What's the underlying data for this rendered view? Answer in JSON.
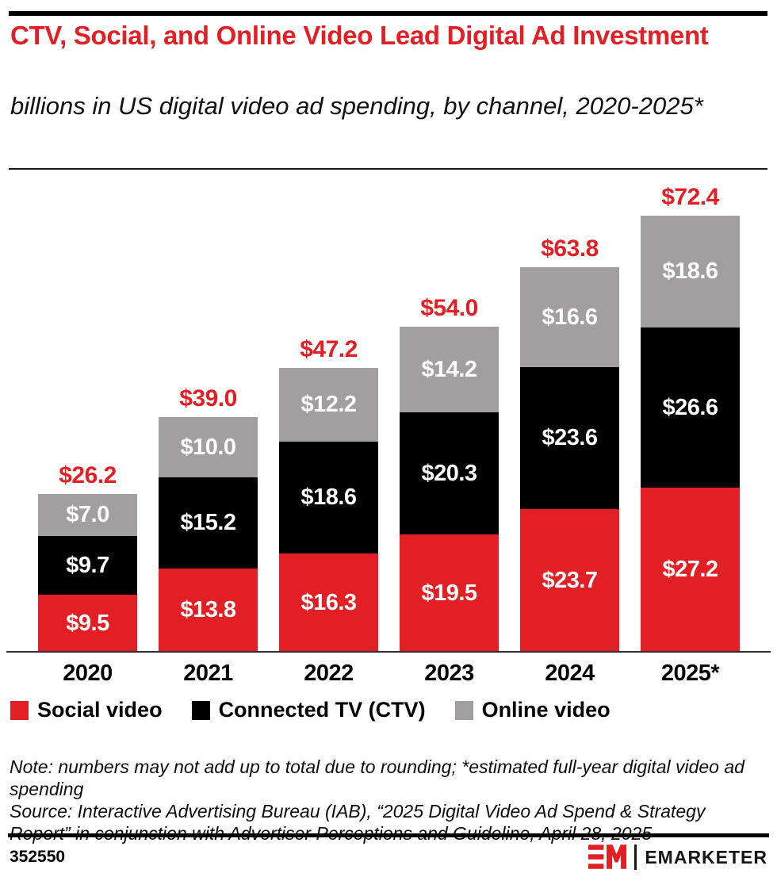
{
  "header": {
    "title": "CTV, Social, and Online Video Lead Digital Ad Investment",
    "subtitle": "billions in US digital video ad spending, by channel, 2020-2025*"
  },
  "chart_data": {
    "type": "bar",
    "stacked": true,
    "title": "CTV, Social, and Online Video Lead Digital Ad Investment",
    "subtitle": "billions in US digital video ad spending, by channel, 2020-2025*",
    "xlabel": "",
    "ylabel": "billions of US dollars",
    "ylim": [
      0,
      72.4
    ],
    "grid": false,
    "legend_position": "bottom",
    "value_prefix": "$",
    "categories": [
      "2020",
      "2021",
      "2022",
      "2023",
      "2024",
      "2025*"
    ],
    "series": [
      {
        "name": "Social video",
        "color": "#e31f26",
        "values": [
          9.5,
          13.8,
          16.3,
          19.5,
          23.7,
          27.2
        ]
      },
      {
        "name": "Connected TV (CTV)",
        "color": "#000000",
        "values": [
          9.7,
          15.2,
          18.6,
          20.3,
          23.6,
          26.6
        ]
      },
      {
        "name": "Online video",
        "color": "#a19fa0",
        "values": [
          7.0,
          10.0,
          12.2,
          14.2,
          16.6,
          18.6
        ]
      }
    ],
    "totals": [
      26.2,
      39.0,
      47.2,
      54.0,
      63.8,
      72.4
    ],
    "total_color": "#e31f26",
    "label_color": "#ffffff"
  },
  "notes": {
    "note": "Note: numbers may not add up to total due to rounding; *estimated full-year digital video ad spending",
    "source": "Source: Interactive Advertising Bureau (IAB), “2025 Digital Video Ad Spend & Strategy Report” in conjunction with Advertiser Perceptions and Guideline, April 28, 2025"
  },
  "footer": {
    "chart_id": "352550",
    "brand": "EMARKETER"
  },
  "colors": {
    "accent_red": "#e31f26",
    "bar_black": "#000000",
    "bar_gray": "#a19fa0",
    "background": "#ffffff"
  }
}
